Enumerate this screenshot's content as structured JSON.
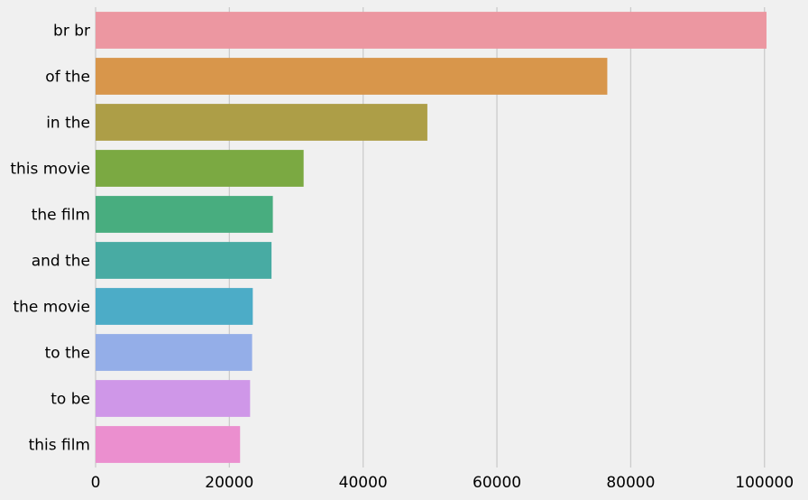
{
  "chart_data": {
    "type": "bar",
    "orientation": "horizontal",
    "title": "",
    "xlabel": "",
    "ylabel": "",
    "categories": [
      "br br",
      "of the",
      "in the",
      "this movie",
      "the film",
      "and the",
      "the movie",
      "to the",
      "to be",
      "this film"
    ],
    "values": [
      100300,
      76500,
      49600,
      31100,
      26500,
      26300,
      23500,
      23400,
      23100,
      21600
    ],
    "colors": [
      "#ec97a1",
      "#d8964b",
      "#ad9e47",
      "#7ba942",
      "#48ad7f",
      "#48aba3",
      "#4cacc7",
      "#94aee8",
      "#cf97e8",
      "#eb8fcf"
    ],
    "xlim": [
      0,
      103000
    ],
    "xticks": [
      0,
      20000,
      40000,
      60000,
      80000,
      100000
    ],
    "xtick_labels": [
      "0",
      "20000",
      "40000",
      "60000",
      "80000",
      "100000"
    ],
    "grid": "vertical",
    "background": "#f0f0f0",
    "grid_color": "#cbcbcb"
  }
}
